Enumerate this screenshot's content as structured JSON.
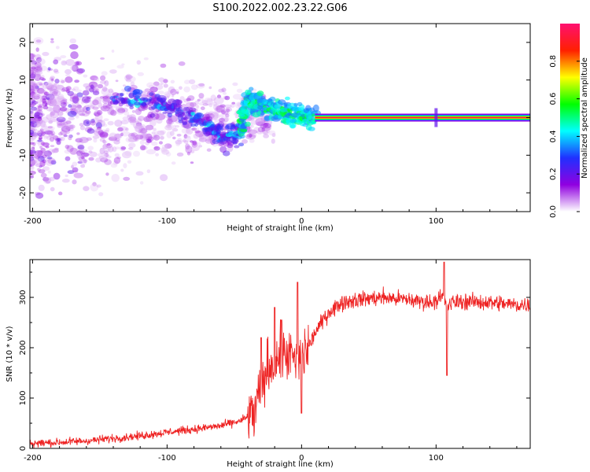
{
  "title": "S100.2022.002.23.22.G06",
  "chart_data": [
    {
      "type": "heatmap",
      "xlabel": "Height of straight line (km)",
      "ylabel": "Frequency (Hz)",
      "xlim": [
        -202,
        170
      ],
      "ylim": [
        -25,
        25
      ],
      "xticks": [
        -200,
        -100,
        0,
        100
      ],
      "yticks": [
        -20,
        -10,
        0,
        10,
        20
      ],
      "grid": false,
      "colorbar": {
        "label": "Normalized spectral amplitude",
        "range": [
          0,
          1
        ],
        "ticks": [
          0.0,
          0.2,
          0.4,
          0.6,
          0.8
        ],
        "tick_labels": [
          "0.0",
          "0.2",
          "0.4",
          "0.6",
          "0.8"
        ],
        "colors": [
          "#ffffff",
          "#9000e0",
          "#2030ff",
          "#00ffff",
          "#00ff00",
          "#ffff00",
          "#ff2000",
          "#ff1070"
        ]
      },
      "features": [
        {
          "desc": "scattered noise cloud",
          "x_range": [
            -202,
            -20
          ],
          "freq_center": 0,
          "freq_spread": 25,
          "amplitude": 0.1
        },
        {
          "desc": "Doppler descending trace",
          "points": [
            [
              -140,
              5
            ],
            [
              -110,
              4
            ],
            [
              -90,
              2
            ],
            [
              -70,
              -2
            ],
            [
              -58,
              -6
            ],
            [
              -45,
              -4
            ],
            [
              -40,
              5
            ],
            [
              -30,
              3
            ],
            [
              -20,
              2
            ],
            [
              -10,
              1
            ],
            [
              0,
              0.5
            ],
            [
              10,
              0
            ]
          ],
          "amplitude": 0.5
        },
        {
          "desc": "stable tone",
          "x_range": [
            10,
            170
          ],
          "freq": 0,
          "amplitude": 0.9
        },
        {
          "desc": "spike",
          "x": 100,
          "freq": 0,
          "amplitude": 0.4
        }
      ]
    },
    {
      "type": "line",
      "xlabel": "Height of straight line (km)",
      "ylabel": "SNR (10 * v/v)",
      "xlim": [
        -202,
        170
      ],
      "ylim": [
        0,
        375
      ],
      "xticks": [
        -200,
        -100,
        0,
        100
      ],
      "yticks": [
        0,
        100,
        200,
        300
      ],
      "grid": false,
      "series": [
        {
          "color": "#ee2222",
          "x": [
            -202,
            -180,
            -160,
            -140,
            -120,
            -100,
            -80,
            -60,
            -45,
            -35,
            -30,
            -25,
            -20,
            -15,
            -10,
            -5,
            0,
            5,
            10,
            15,
            20,
            25,
            30,
            40,
            60,
            80,
            95,
            100,
            105,
            108,
            112,
            120,
            140,
            160,
            170
          ],
          "values": [
            10,
            12,
            15,
            20,
            25,
            32,
            38,
            45,
            55,
            70,
            120,
            160,
            175,
            180,
            190,
            170,
            180,
            200,
            230,
            250,
            270,
            280,
            290,
            295,
            300,
            295,
            290,
            295,
            300,
            280,
            290,
            292,
            290,
            285,
            285
          ],
          "noise": 14,
          "spikes": [
            [
              -30,
              220
            ],
            [
              -20,
              280
            ],
            [
              -15,
              255
            ],
            [
              -3,
              330
            ],
            [
              0,
              70
            ],
            [
              106,
              370
            ],
            [
              108,
              145
            ]
          ]
        }
      ]
    }
  ]
}
